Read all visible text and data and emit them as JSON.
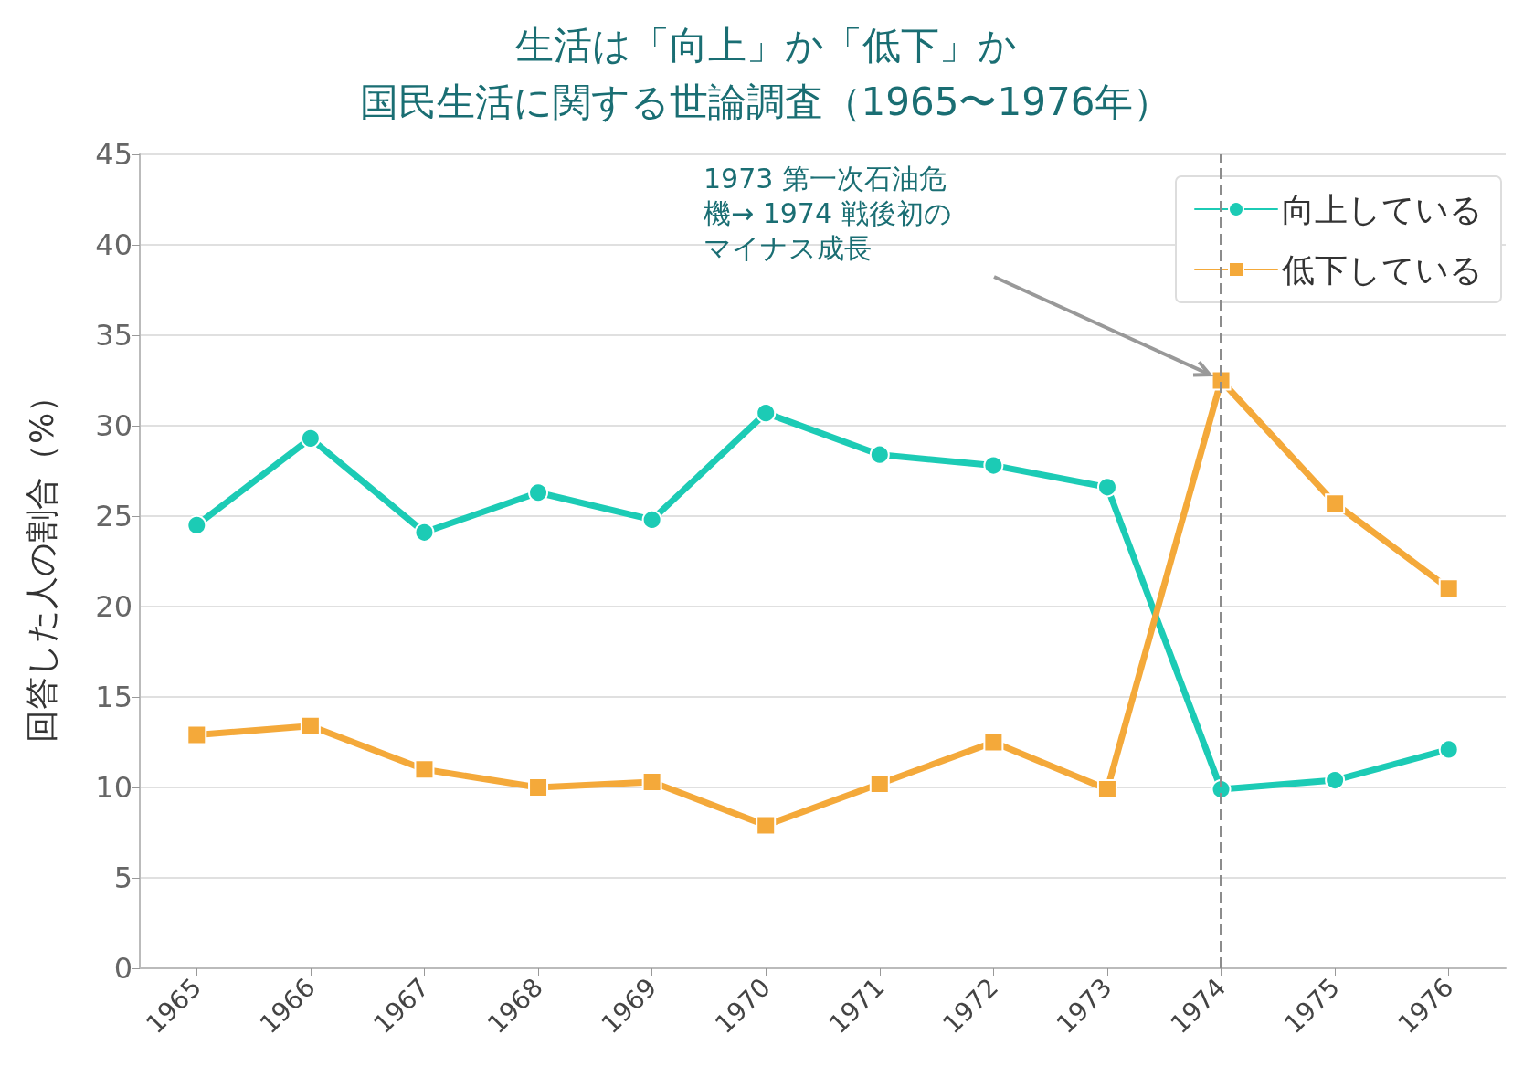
{
  "chart_data": {
    "type": "line",
    "title": "生活は「向上」か「低下」か",
    "subtitle": "国民生活に関する世論調査（1965〜1976年）",
    "ylabel": "回答した人の割合（%）",
    "categories": [
      "1965",
      "1966",
      "1967",
      "1968",
      "1969",
      "1970",
      "1971",
      "1972",
      "1973",
      "1974",
      "1975",
      "1976"
    ],
    "series": [
      {
        "name": "向上している",
        "color": "#1ccbb5",
        "marker": "circle",
        "values": [
          24.5,
          29.3,
          24.1,
          26.3,
          24.8,
          30.7,
          28.4,
          27.8,
          26.6,
          9.9,
          10.4,
          12.1
        ]
      },
      {
        "name": "低下している",
        "color": "#f4a93a",
        "marker": "square",
        "values": [
          12.9,
          13.4,
          11.0,
          10.0,
          10.3,
          7.9,
          10.2,
          12.5,
          9.9,
          32.5,
          25.7,
          21.0
        ]
      }
    ],
    "ylim": [
      0,
      45
    ],
    "yticks": [
      0,
      5,
      10,
      15,
      20,
      25,
      30,
      35,
      40,
      45
    ],
    "ref_lines": [
      {
        "axis": "x",
        "value": "1974",
        "color": "#8c8c8c",
        "line_style": "dashed"
      }
    ],
    "annotations": [
      "1973 第一次石油危機→ 1974 戦後初のマイナス成長"
    ],
    "grid": "y",
    "legend": "top right",
    "line_style": "solid"
  }
}
